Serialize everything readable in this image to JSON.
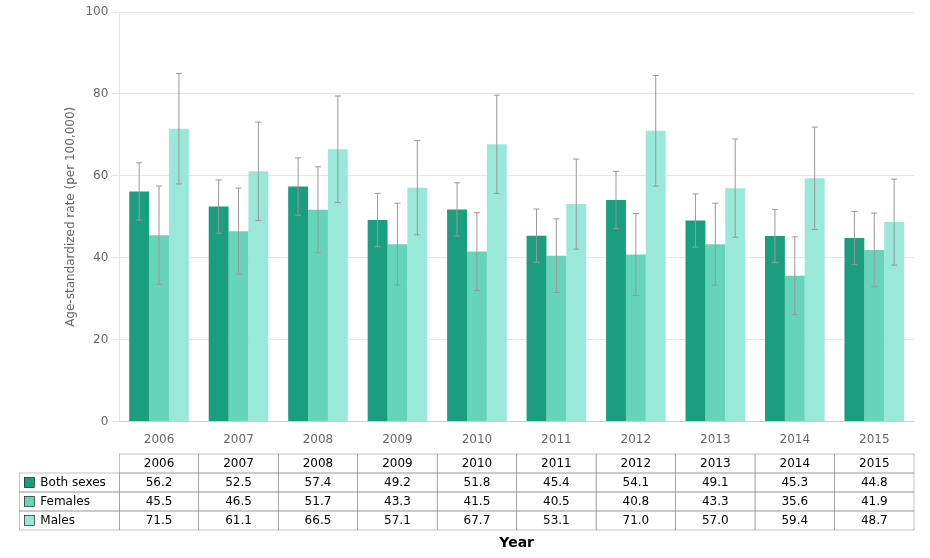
{
  "chart_data": {
    "type": "bar",
    "categories": [
      "2006",
      "2007",
      "2008",
      "2009",
      "2010",
      "2011",
      "2012",
      "2013",
      "2014",
      "2015"
    ],
    "xlabel": "Year",
    "ylabel": "Age-standardized rate (per 100,000)",
    "ylim": [
      0,
      100
    ],
    "yticks": [
      0,
      20,
      40,
      60,
      80,
      100
    ],
    "grid": true,
    "data_labels": true,
    "series": [
      {
        "name": "Both sexes",
        "color": "#1a9e7e",
        "values": [
          56.2,
          52.5,
          57.4,
          49.2,
          51.8,
          45.4,
          54.1,
          49.1,
          45.3,
          44.8
        ],
        "value_labels": [
          "56.2",
          "52.5",
          "57.4",
          "49.2",
          "51.8",
          "45.4",
          "54.1",
          "49.1",
          "45.3",
          "44.8"
        ],
        "errors": [
          7.0,
          6.5,
          7.0,
          6.5,
          6.5,
          6.5,
          7.0,
          6.5,
          6.5,
          6.5
        ]
      },
      {
        "name": "Females",
        "color": "#66d4b8",
        "values": [
          45.5,
          46.5,
          51.7,
          43.3,
          41.5,
          40.5,
          40.8,
          43.3,
          35.6,
          41.9
        ],
        "value_labels": [
          "45.5",
          "46.5",
          "51.7",
          "43.3",
          "41.5",
          "40.5",
          "40.8",
          "43.3",
          "35.6",
          "41.9"
        ],
        "errors": [
          12.0,
          10.5,
          10.5,
          10.0,
          9.5,
          9.0,
          10.0,
          10.0,
          9.5,
          9.0
        ]
      },
      {
        "name": "Males",
        "color": "#99e8d8",
        "values": [
          71.5,
          61.1,
          66.5,
          57.1,
          67.7,
          53.1,
          71.0,
          57.0,
          59.4,
          48.7
        ],
        "value_labels": [
          "71.5",
          "61.1",
          "66.5",
          "57.1",
          "67.7",
          "53.1",
          "71.0",
          "57.0",
          "59.4",
          "48.7"
        ],
        "errors": [
          13.5,
          12.0,
          13.0,
          11.5,
          12.0,
          11.0,
          13.5,
          12.0,
          12.5,
          10.5
        ]
      }
    ]
  }
}
